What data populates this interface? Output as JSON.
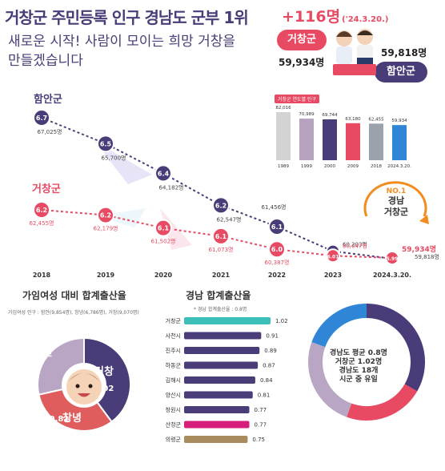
{
  "header": {
    "headline": "거창군 주민등록 인구 경남도 군부 1위",
    "subhead_line1": "새로운 시작! 사람이 모이는 희망 거창을",
    "subhead_line2": "만들겠습니다",
    "delta": "+116명",
    "delta_date": "('24.3.20.)",
    "geochang_label": "거창군",
    "geochang_pop": "59,934명",
    "haman_label": "함안군",
    "haman_pop": "59,818명"
  },
  "colors": {
    "purple": "#4a3c78",
    "red": "#e84a63",
    "teal": "#3bbfb8"
  },
  "trend": {
    "haman_label": "함안군",
    "geochang_label": "거창군",
    "years": [
      "2018",
      "2019",
      "2020",
      "2021",
      "2022",
      "2023",
      "2024.3.20."
    ],
    "haman": {
      "rates": [
        "6.7",
        "6.5",
        "6.4",
        "6.2",
        "6.1",
        "6.02",
        "5.98"
      ],
      "pops": [
        "67,025명",
        "65,700명",
        "64,182명",
        "62,547명",
        "61,456명",
        "60,203명",
        "59,818명"
      ],
      "values": [
        67025,
        65700,
        64182,
        62547,
        61456,
        60203,
        59818
      ]
    },
    "geochang": {
      "rates": [
        "6.2",
        "6.2",
        "6.1",
        "6.1",
        "6.0",
        "6.01",
        "5.99"
      ],
      "pops": [
        "62,455명",
        "62,179명",
        "61,502명",
        "61,073명",
        "60,387명",
        "60,047명",
        "59,934명"
      ],
      "values": [
        62455,
        62179,
        61502,
        61073,
        60387,
        60047,
        59934
      ]
    }
  },
  "yearly": {
    "title": "거창군 연도별 인구",
    "categories": [
      "1989",
      "1999",
      "2000",
      "2009",
      "2018",
      "2024.3.20."
    ],
    "values": [
      82016,
      70989,
      69744,
      63180,
      62455,
      59934
    ],
    "labels": [
      "82,016",
      "70,989",
      "69,744",
      "63,180",
      "62,455",
      "59,934"
    ],
    "colors": [
      "#d3d3d3",
      "#b7a3c0",
      "#4a3c78",
      "#e84a63",
      "#9aa3ab",
      "#2f86d6"
    ]
  },
  "badge": {
    "rank": "NO.1",
    "line1": "경남",
    "line2": "거창군"
  },
  "fertility_pie": {
    "title": "가임여성 대비 합계출산율",
    "note": "가임여성 인구 : 함안(9,854명), 창녕(6,786명), 거창(9,070명)",
    "slices": [
      {
        "name": "거창",
        "value": 1.02,
        "label": "1.02",
        "color": "#4a3c78"
      },
      {
        "name": "창녕",
        "value": 0.81,
        "label": "0.81",
        "color": "#e05d5d"
      },
      {
        "name": "함안",
        "value": 0.73,
        "label": "0.73",
        "color": "#b9a5c4"
      }
    ]
  },
  "chart_data": {
    "type": "bar",
    "title": "경남 합계출산율",
    "subtitle": "* 경남 합계출산율 : 0.8명",
    "categories": [
      "거창군",
      "사천시",
      "진주시",
      "하동군",
      "김해시",
      "양산시",
      "창원시",
      "산청군",
      "의령군"
    ],
    "values": [
      1.02,
      0.91,
      0.89,
      0.87,
      0.84,
      0.81,
      0.77,
      0.77,
      0.75
    ],
    "labels": [
      "1.02",
      "0.91",
      "0.89",
      "0.87",
      "0.84",
      "0.81",
      "0.77",
      "0.77",
      "0.75"
    ],
    "colors": [
      "#3bbfb8",
      "#4a3c78",
      "#4a3c78",
      "#4a3c78",
      "#4a3c78",
      "#4a3c78",
      "#4a3c78",
      "#d61f7a",
      "#a88c5e"
    ]
  },
  "summary": {
    "line1": "경남도 평균 0.8명",
    "line2": "거창군 1.02명",
    "line3": "경남도 18개",
    "line4": "시군 중 유일"
  }
}
